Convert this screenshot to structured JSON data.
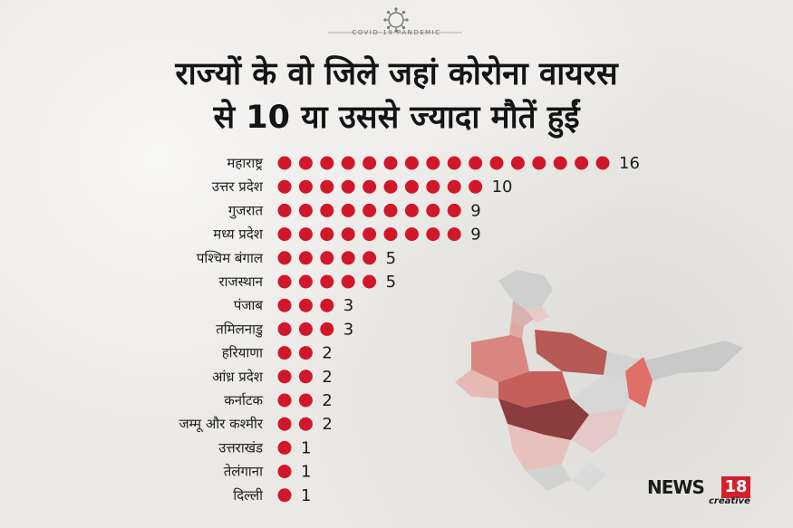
{
  "header": {
    "badge_text": "COVID-19 PANDEMIC",
    "title_line1": "राज्यों के वो जिले जहां कोरोना वायरस",
    "title_line2": "से 10 या उससे ज्यादा मौतें हुईं"
  },
  "chart_data": {
    "type": "bar",
    "title": "राज्यों के वो जिले जहां कोरोना वायरस से 10 या उससे ज्यादा मौतें हुईं",
    "categories": [
      "महाराष्ट्र",
      "उत्तर प्रदेश",
      "गुजरात",
      "मध्य प्रदेश",
      "पश्चिम बंगाल",
      "राजस्थान",
      "पंजाब",
      "तमिलनाडु",
      "हरियाणा",
      "आंध्र प्रदेश",
      "कर्नाटक",
      "जम्मू और कश्मीर",
      "उत्तराखंड",
      "तेलंगाना",
      "दिल्ली"
    ],
    "values": [
      16,
      10,
      9,
      9,
      5,
      5,
      3,
      3,
      2,
      2,
      2,
      2,
      1,
      1,
      1
    ],
    "dot_color": "#d0182a",
    "xlabel": "",
    "ylabel": ""
  },
  "logo": {
    "brand": "NEWS",
    "number": "18",
    "sub": "creative",
    "accent": "#d4202a"
  }
}
